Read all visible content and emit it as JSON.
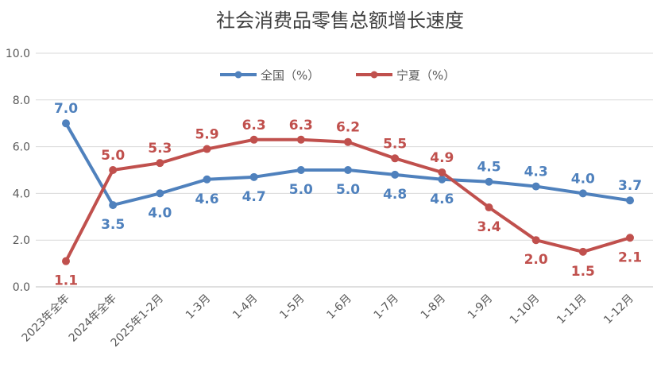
{
  "chart_data": {
    "type": "line",
    "title": "社会消费品零售总额增长速度",
    "xlabel": "",
    "ylabel": "",
    "ylim": [
      0,
      10
    ],
    "yticks": [
      "0.0",
      "2.0",
      "4.0",
      "6.0",
      "8.0",
      "10.0"
    ],
    "grid": true,
    "legend_position": "top-center",
    "categories": [
      "2023年全年",
      "2024年全年",
      "2025年1-2月",
      "1-3月",
      "1-4月",
      "1-5月",
      "1-6月",
      "1-7月",
      "1-8月",
      "1-9月",
      "1-10月",
      "1-11月",
      "1-12月"
    ],
    "series": [
      {
        "name": "全国（%）",
        "color": "#4F81BD",
        "values": [
          7.0,
          3.5,
          4.0,
          4.6,
          4.7,
          5.0,
          5.0,
          4.8,
          4.6,
          4.5,
          4.3,
          4.0,
          3.7
        ]
      },
      {
        "name": "宁夏（%）",
        "color": "#C0504D",
        "values": [
          1.1,
          5.0,
          5.3,
          5.9,
          6.3,
          6.3,
          6.2,
          5.5,
          4.9,
          3.4,
          2.0,
          1.5,
          2.1
        ]
      }
    ]
  }
}
